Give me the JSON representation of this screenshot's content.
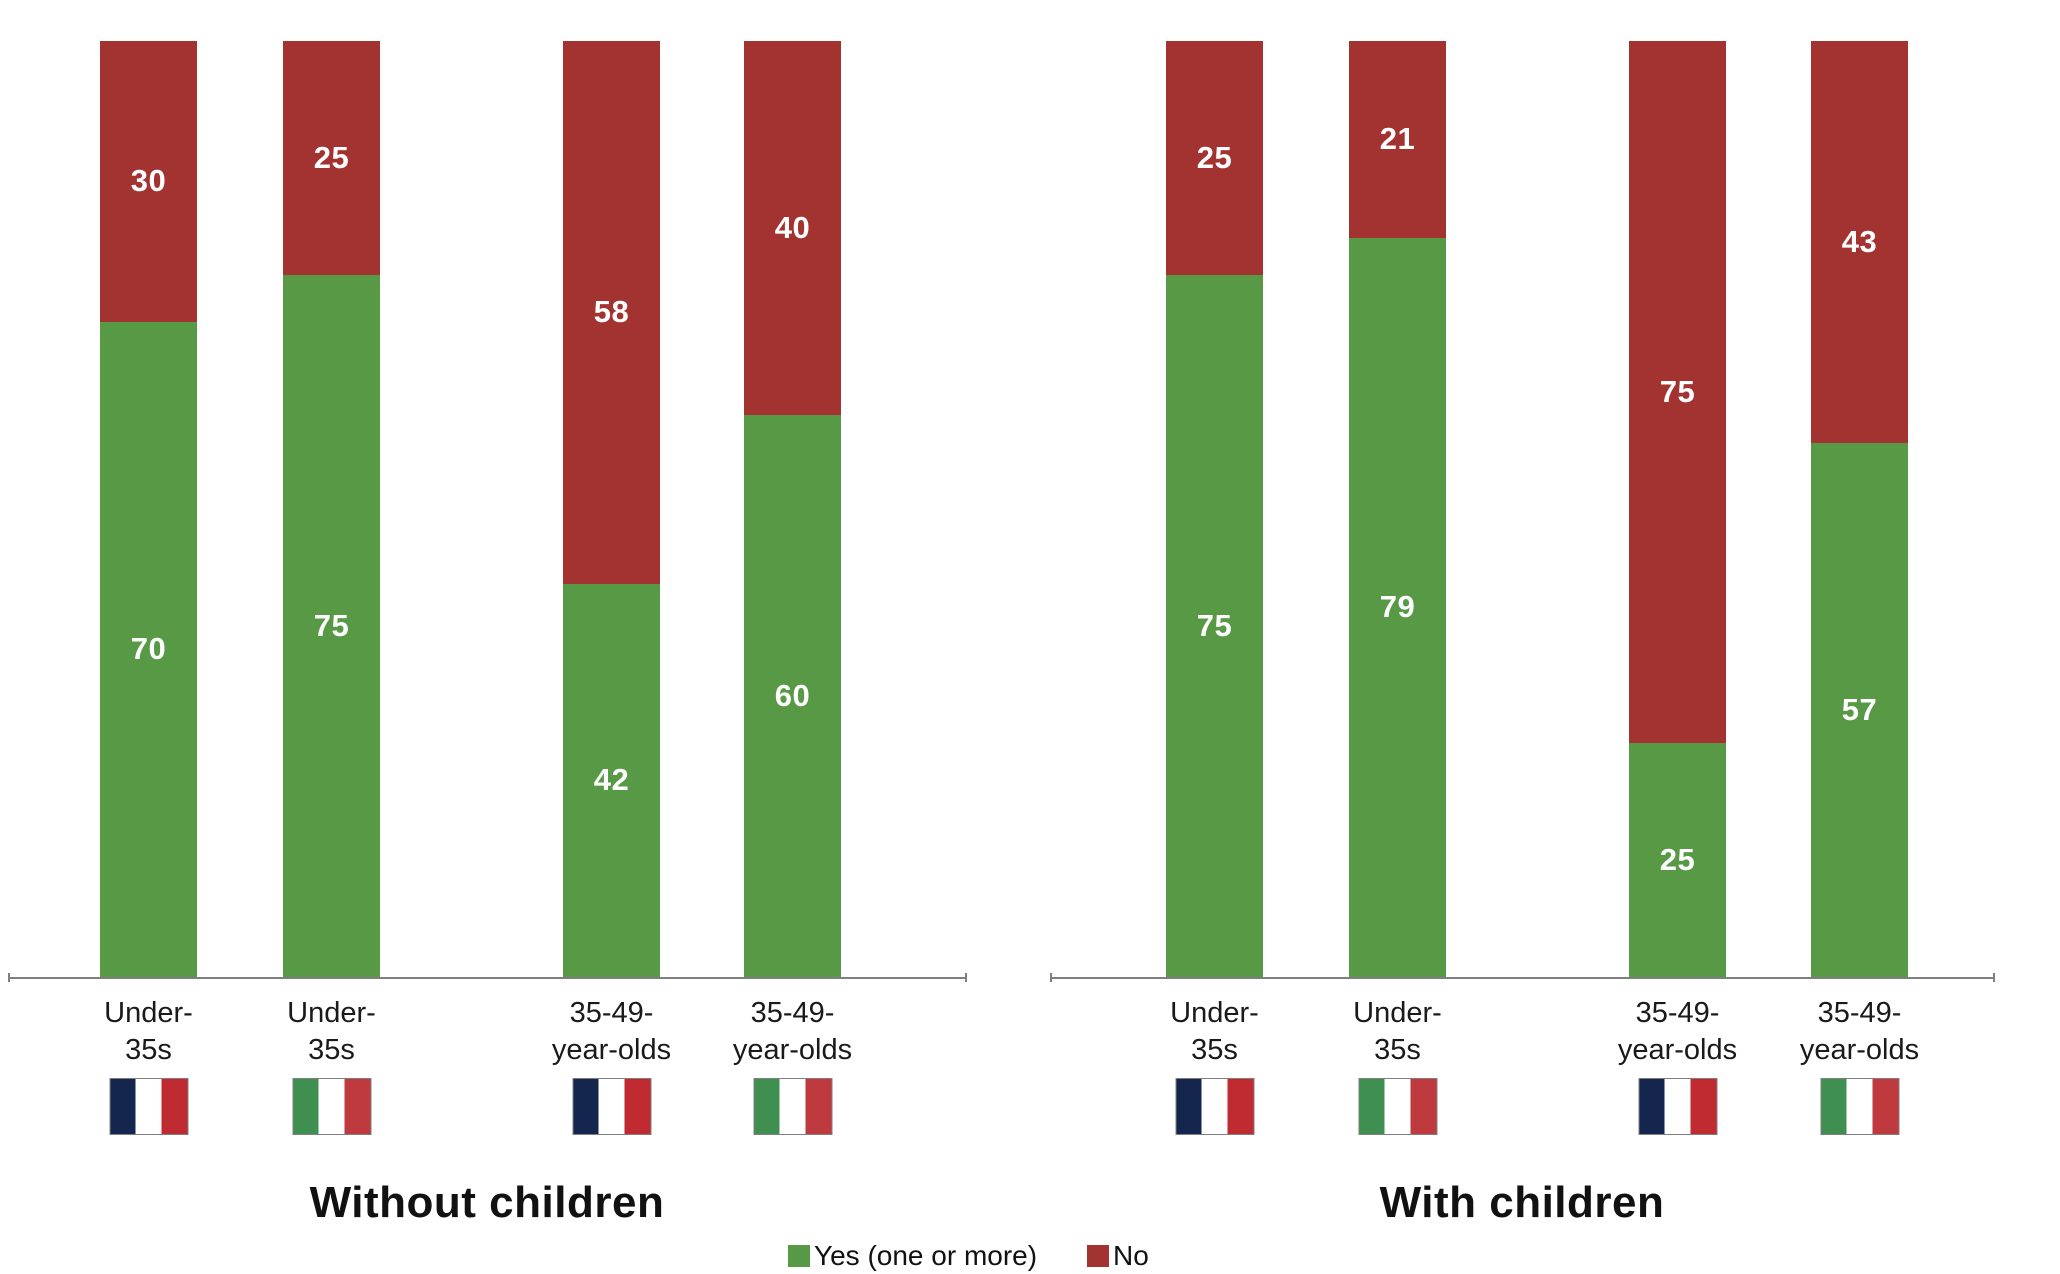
{
  "colors": {
    "yes_green": "#579944",
    "no_red": "#a33331",
    "axis_gray": "#7f7f7f",
    "value_label_white": "#ffffff",
    "text_black": "#111111",
    "france_flag": [
      "#14264d",
      "#ffffff",
      "#bf2b30"
    ],
    "italy_flag": [
      "#3f8f50",
      "#ffffff",
      "#bf3a3e"
    ]
  },
  "chart_data": {
    "type": "bar",
    "stacked": true,
    "ylim": [
      0,
      100
    ],
    "grid": false,
    "legend_position": "bottom-center",
    "legend": [
      {
        "label": "Yes (one or more)",
        "color": "#579944",
        "series": "yes"
      },
      {
        "label": "No",
        "color": "#a33331",
        "series": "no"
      }
    ],
    "panels": [
      {
        "title": "Without children",
        "bars": [
          {
            "category": "Under-\n35s",
            "country": "france",
            "flag_icon": "france-flag-icon",
            "yes": 70,
            "no": 30
          },
          {
            "category": "Under-\n35s",
            "country": "italy",
            "flag_icon": "italy-flag-icon",
            "yes": 75,
            "no": 25
          },
          {
            "category": "35-49-\nyear-olds",
            "country": "france",
            "flag_icon": "france-flag-icon",
            "yes": 42,
            "no": 58
          },
          {
            "category": "35-49-\nyear-olds",
            "country": "italy",
            "flag_icon": "italy-flag-icon",
            "yes": 60,
            "no": 40
          }
        ]
      },
      {
        "title": "With children",
        "bars": [
          {
            "category": "Under-\n35s",
            "country": "france",
            "flag_icon": "france-flag-icon",
            "yes": 75,
            "no": 25
          },
          {
            "category": "Under-\n35s",
            "country": "italy",
            "flag_icon": "italy-flag-icon",
            "yes": 79,
            "no": 21
          },
          {
            "category": "35-49-\nyear-olds",
            "country": "france",
            "flag_icon": "france-flag-icon",
            "yes": 25,
            "no": 75
          },
          {
            "category": "35-49-\nyear-olds",
            "country": "italy",
            "flag_icon": "italy-flag-icon",
            "yes": 57,
            "no": 43
          }
        ]
      }
    ]
  }
}
